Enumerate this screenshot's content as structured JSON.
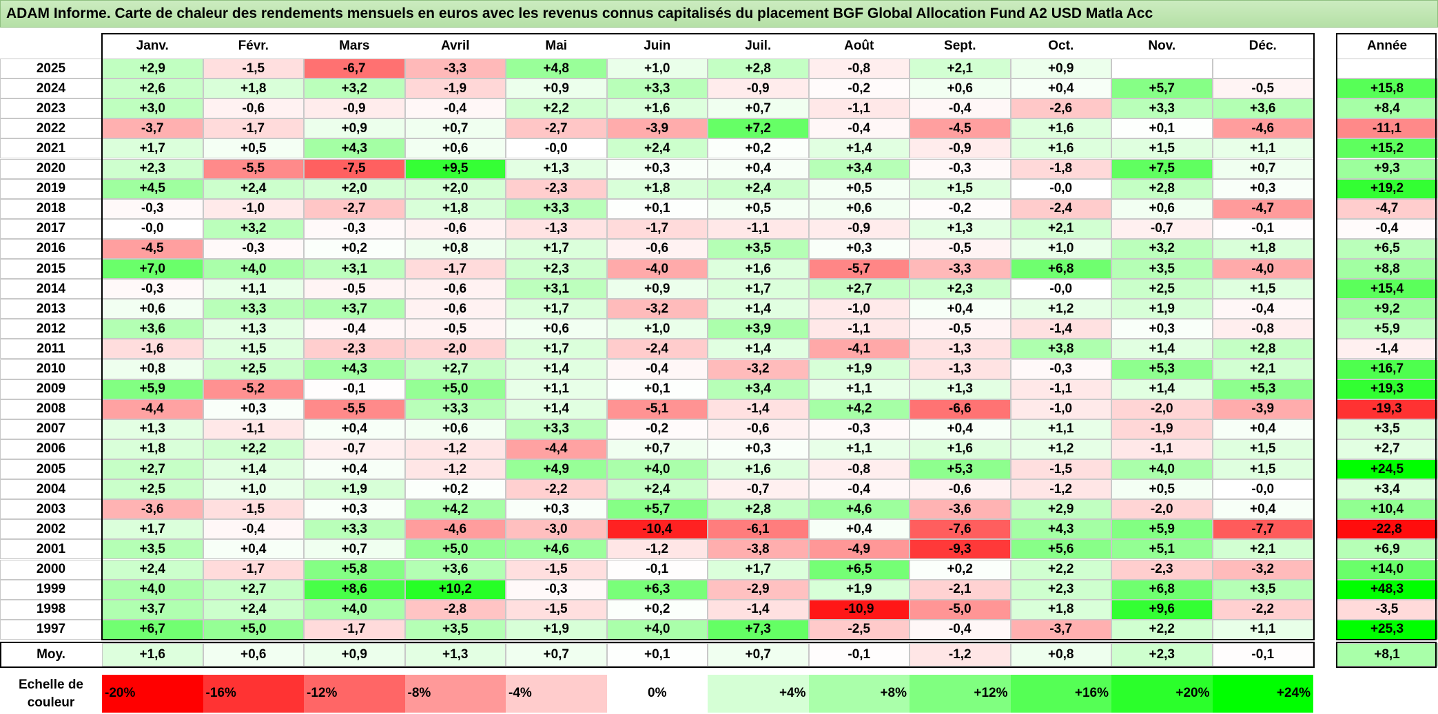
{
  "title": "ADAM Informe. Carte de chaleur des rendements mensuels en euros avec les revenus connus capitalisés du placement BGF Global Allocation Fund A2 USD Matla Acc",
  "chart_data": {
    "type": "heatmap",
    "title": "ADAM Informe. Carte de chaleur des rendements mensuels en euros avec les revenus connus capitalisés du placement BGF Global Allocation Fund A2 USD Matla Acc",
    "columns": [
      "Janv.",
      "Févr.",
      "Mars",
      "Avril",
      "Mai",
      "Juin",
      "Juil.",
      "Août",
      "Sept.",
      "Oct.",
      "Nov.",
      "Déc."
    ],
    "annual_header": "Année",
    "rows": [
      {
        "year": "2025",
        "values": [
          "+2,9",
          "-1,5",
          "-6,7",
          "-3,3",
          "+4,8",
          "+1,0",
          "+2,8",
          "-0,8",
          "+2,1",
          "+0,9",
          "",
          ""
        ],
        "annual": ""
      },
      {
        "year": "2024",
        "values": [
          "+2,6",
          "+1,8",
          "+3,2",
          "-1,9",
          "+0,9",
          "+3,3",
          "-0,9",
          "-0,2",
          "+0,6",
          "+0,4",
          "+5,7",
          "-0,5"
        ],
        "annual": "+15,8"
      },
      {
        "year": "2023",
        "values": [
          "+3,0",
          "-0,6",
          "-0,9",
          "-0,4",
          "+2,2",
          "+1,6",
          "+0,7",
          "-1,1",
          "-0,4",
          "-2,6",
          "+3,3",
          "+3,6"
        ],
        "annual": "+8,4"
      },
      {
        "year": "2022",
        "values": [
          "-3,7",
          "-1,7",
          "+0,9",
          "+0,7",
          "-2,7",
          "-3,9",
          "+7,2",
          "-0,4",
          "-4,5",
          "+1,6",
          "+0,1",
          "-4,6"
        ],
        "annual": "-11,1"
      },
      {
        "year": "2021",
        "values": [
          "+1,7",
          "+0,5",
          "+4,3",
          "+0,6",
          "-0,0",
          "+2,4",
          "+0,2",
          "+1,4",
          "-0,9",
          "+1,6",
          "+1,5",
          "+1,1"
        ],
        "annual": "+15,2"
      },
      {
        "year": "2020",
        "values": [
          "+2,3",
          "-5,5",
          "-7,5",
          "+9,5",
          "+1,3",
          "+0,3",
          "+0,4",
          "+3,4",
          "-0,3",
          "-1,8",
          "+7,5",
          "+0,7"
        ],
        "annual": "+9,3"
      },
      {
        "year": "2019",
        "values": [
          "+4,5",
          "+2,4",
          "+2,0",
          "+2,0",
          "-2,3",
          "+1,8",
          "+2,4",
          "+0,5",
          "+1,5",
          "-0,0",
          "+2,8",
          "+0,3"
        ],
        "annual": "+19,2"
      },
      {
        "year": "2018",
        "values": [
          "-0,3",
          "-1,0",
          "-2,7",
          "+1,8",
          "+3,3",
          "+0,1",
          "+0,5",
          "+0,6",
          "-0,2",
          "-2,4",
          "+0,6",
          "-4,7"
        ],
        "annual": "-4,7"
      },
      {
        "year": "2017",
        "values": [
          "-0,0",
          "+3,2",
          "-0,3",
          "-0,6",
          "-1,3",
          "-1,7",
          "-1,1",
          "-0,9",
          "+1,3",
          "+2,1",
          "-0,7",
          "-0,1"
        ],
        "annual": "-0,4"
      },
      {
        "year": "2016",
        "values": [
          "-4,5",
          "-0,3",
          "+0,2",
          "+0,8",
          "+1,7",
          "-0,6",
          "+3,5",
          "+0,3",
          "-0,5",
          "+1,0",
          "+3,2",
          "+1,8"
        ],
        "annual": "+6,5"
      },
      {
        "year": "2015",
        "values": [
          "+7,0",
          "+4,0",
          "+3,1",
          "-1,7",
          "+2,3",
          "-4,0",
          "+1,6",
          "-5,7",
          "-3,3",
          "+6,8",
          "+3,5",
          "-4,0"
        ],
        "annual": "+8,8"
      },
      {
        "year": "2014",
        "values": [
          "-0,3",
          "+1,1",
          "-0,5",
          "-0,6",
          "+3,1",
          "+0,9",
          "+1,7",
          "+2,7",
          "+2,3",
          "-0,0",
          "+2,5",
          "+1,5"
        ],
        "annual": "+15,4"
      },
      {
        "year": "2013",
        "values": [
          "+0,6",
          "+3,3",
          "+3,7",
          "-0,6",
          "+1,7",
          "-3,2",
          "+1,4",
          "-1,0",
          "+0,4",
          "+1,2",
          "+1,9",
          "-0,4"
        ],
        "annual": "+9,2"
      },
      {
        "year": "2012",
        "values": [
          "+3,6",
          "+1,3",
          "-0,4",
          "-0,5",
          "+0,6",
          "+1,0",
          "+3,9",
          "-1,1",
          "-0,5",
          "-1,4",
          "+0,3",
          "-0,8"
        ],
        "annual": "+5,9"
      },
      {
        "year": "2011",
        "values": [
          "-1,6",
          "+1,5",
          "-2,3",
          "-2,0",
          "+1,7",
          "-2,4",
          "+1,4",
          "-4,1",
          "-1,3",
          "+3,8",
          "+1,4",
          "+2,8"
        ],
        "annual": "-1,4"
      },
      {
        "year": "2010",
        "values": [
          "+0,8",
          "+2,5",
          "+4,3",
          "+2,7",
          "+1,4",
          "-0,4",
          "-3,2",
          "+1,9",
          "-1,3",
          "-0,3",
          "+5,3",
          "+2,1"
        ],
        "annual": "+16,7"
      },
      {
        "year": "2009",
        "values": [
          "+5,9",
          "-5,2",
          "-0,1",
          "+5,0",
          "+1,1",
          "+0,1",
          "+3,4",
          "+1,1",
          "+1,3",
          "-1,1",
          "+1,4",
          "+5,3"
        ],
        "annual": "+19,3"
      },
      {
        "year": "2008",
        "values": [
          "-4,4",
          "+0,3",
          "-5,5",
          "+3,3",
          "+1,4",
          "-5,1",
          "-1,4",
          "+4,2",
          "-6,6",
          "-1,0",
          "-2,0",
          "-3,9"
        ],
        "annual": "-19,3"
      },
      {
        "year": "2007",
        "values": [
          "+1,3",
          "-1,1",
          "+0,4",
          "+0,6",
          "+3,3",
          "-0,2",
          "-0,6",
          "-0,3",
          "+0,4",
          "+1,1",
          "-1,9",
          "+0,4"
        ],
        "annual": "+3,5"
      },
      {
        "year": "2006",
        "values": [
          "+1,8",
          "+2,2",
          "-0,7",
          "-1,2",
          "-4,4",
          "+0,7",
          "+0,3",
          "+1,1",
          "+1,6",
          "+1,2",
          "-1,1",
          "+1,5"
        ],
        "annual": "+2,7"
      },
      {
        "year": "2005",
        "values": [
          "+2,7",
          "+1,4",
          "+0,4",
          "-1,2",
          "+4,9",
          "+4,0",
          "+1,6",
          "-0,8",
          "+5,3",
          "-1,5",
          "+4,0",
          "+1,5"
        ],
        "annual": "+24,5"
      },
      {
        "year": "2004",
        "values": [
          "+2,5",
          "+1,0",
          "+1,9",
          "+0,2",
          "-2,2",
          "+2,4",
          "-0,7",
          "-0,4",
          "-0,6",
          "-1,2",
          "+0,5",
          "-0,0"
        ],
        "annual": "+3,4"
      },
      {
        "year": "2003",
        "values": [
          "-3,6",
          "-1,5",
          "+0,3",
          "+4,2",
          "+0,3",
          "+5,7",
          "+2,8",
          "+4,6",
          "-3,6",
          "+2,9",
          "-2,0",
          "+0,4"
        ],
        "annual": "+10,4"
      },
      {
        "year": "2002",
        "values": [
          "+1,7",
          "-0,4",
          "+3,3",
          "-4,6",
          "-3,0",
          "-10,4",
          "-6,1",
          "+0,4",
          "-7,6",
          "+4,3",
          "+5,9",
          "-7,7"
        ],
        "annual": "-22,8"
      },
      {
        "year": "2001",
        "values": [
          "+3,5",
          "+0,4",
          "+0,7",
          "+5,0",
          "+4,6",
          "-1,2",
          "-3,8",
          "-4,9",
          "-9,3",
          "+5,6",
          "+5,1",
          "+2,1"
        ],
        "annual": "+6,9"
      },
      {
        "year": "2000",
        "values": [
          "+2,4",
          "-1,7",
          "+5,8",
          "+3,6",
          "-1,5",
          "-0,1",
          "+1,7",
          "+6,5",
          "+0,2",
          "+2,2",
          "-2,3",
          "-3,2"
        ],
        "annual": "+14,0"
      },
      {
        "year": "1999",
        "values": [
          "+4,0",
          "+2,7",
          "+8,6",
          "+10,2",
          "-0,3",
          "+6,3",
          "-2,9",
          "+1,9",
          "-2,1",
          "+2,3",
          "+6,8",
          "+3,5"
        ],
        "annual": "+48,3"
      },
      {
        "year": "1998",
        "values": [
          "+3,7",
          "+2,4",
          "+4,0",
          "-2,8",
          "-1,5",
          "+0,2",
          "-1,4",
          "-10,9",
          "-5,0",
          "+1,8",
          "+9,6",
          "-2,2"
        ],
        "annual": "-3,5"
      },
      {
        "year": "1997",
        "values": [
          "+6,7",
          "+5,0",
          "-1,7",
          "+3,5",
          "+1,9",
          "+4,0",
          "+7,3",
          "-2,5",
          "-0,4",
          "-3,7",
          "+2,2",
          "+1,1"
        ],
        "annual": "+25,3"
      }
    ],
    "average": {
      "label": "Moy.",
      "values": [
        "+1,6",
        "+0,6",
        "+0,9",
        "+1,3",
        "+0,7",
        "+0,1",
        "+0,7",
        "-0,1",
        "-1,2",
        "+0,8",
        "+2,3",
        "-0,1"
      ],
      "annual": "+8,1"
    },
    "legend": {
      "label": "Echelle de couleur",
      "items": [
        {
          "label": "-20%",
          "value": -20,
          "align": "left"
        },
        {
          "label": "-16%",
          "value": -16,
          "align": "left"
        },
        {
          "label": "-12%",
          "value": -12,
          "align": "left"
        },
        {
          "label": "-8%",
          "value": -8,
          "align": "left"
        },
        {
          "label": "-4%",
          "value": -4,
          "align": "left"
        },
        {
          "label": "0%",
          "value": 0,
          "align": "center"
        },
        {
          "label": "+4%",
          "value": 4,
          "align": "right"
        },
        {
          "label": "+8%",
          "value": 8,
          "align": "right"
        },
        {
          "label": "+12%",
          "value": 12,
          "align": "right"
        },
        {
          "label": "+16%",
          "value": 16,
          "align": "right"
        },
        {
          "label": "+20%",
          "value": 20,
          "align": "right"
        },
        {
          "label": "+24%",
          "value": 24,
          "align": "right"
        }
      ]
    },
    "colors": {
      "negative": "#ff0000",
      "neutral": "#ffffff",
      "positive": "#00ff00"
    }
  }
}
